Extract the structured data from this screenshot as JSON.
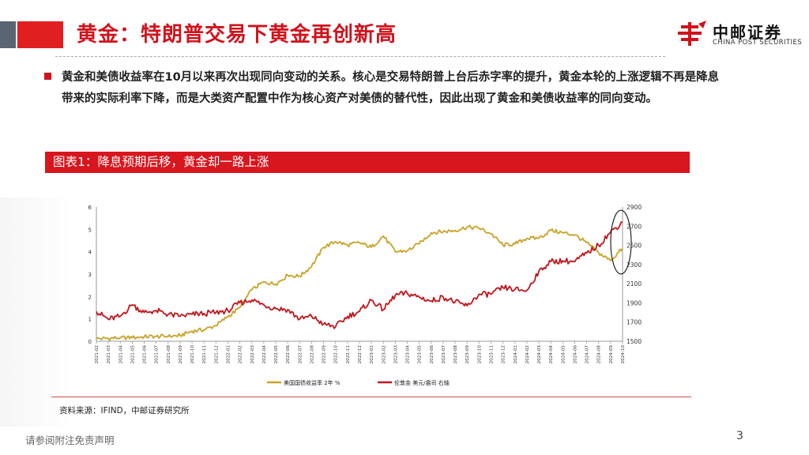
{
  "header": {
    "title": "黄金：特朗普交易下黄金再创新高",
    "logo_name": "中邮证券",
    "logo_en": "CHINA POST SECURITIES"
  },
  "body": {
    "paragraph": "黄金和美债收益率在10月以来再次出现同向变动的关系。核心是交易特朗普上台后赤字率的提升，黄金本轮的上涨逻辑不再是降息带来的实际利率下降，而是大类资产配置中作为核心资产对美债的替代性，因此出现了黄金和美债收益率的同向变动。"
  },
  "figure": {
    "title": "图表1：降息预期后移，黄金却一路上涨"
  },
  "chart_data": {
    "type": "line",
    "x_ticks": [
      "2021-02",
      "2021-03",
      "2021-04",
      "2021-05",
      "2021-06",
      "2021-07",
      "2021-08",
      "2021-09",
      "2021-10",
      "2021-11",
      "2021-12",
      "2022-01",
      "2022-02",
      "2022-03",
      "2022-04",
      "2022-05",
      "2022-06",
      "2022-07",
      "2022-08",
      "2022-09",
      "2022-10",
      "2022-11",
      "2022-12",
      "2023-01",
      "2023-02",
      "2023-03",
      "2023-04",
      "2023-05",
      "2023-06",
      "2023-07",
      "2023-08",
      "2023-09",
      "2023-10",
      "2023-11",
      "2023-12",
      "2024-01",
      "2024-02",
      "2024-03",
      "2024-04",
      "2024-05",
      "2024-06",
      "2024-07",
      "2024-08",
      "2024-09",
      "2024-10"
    ],
    "y_left": {
      "ticks": [
        0,
        1,
        2,
        3,
        4,
        5,
        6
      ],
      "range": [
        0,
        6
      ]
    },
    "y_right": {
      "ticks": [
        1500,
        1700,
        1900,
        2100,
        2300,
        2500,
        2700,
        2900
      ],
      "range": [
        1500,
        2900
      ]
    },
    "series": [
      {
        "name": "美国国债收益率 2年 %",
        "axis": "left",
        "color": "#c9a227",
        "values": [
          0.11,
          0.13,
          0.16,
          0.16,
          0.2,
          0.22,
          0.21,
          0.26,
          0.45,
          0.52,
          0.7,
          1.1,
          1.5,
          2.3,
          2.65,
          2.55,
          2.95,
          2.9,
          3.35,
          4.2,
          4.45,
          4.3,
          4.4,
          4.2,
          4.7,
          4.0,
          4.05,
          4.35,
          4.85,
          4.9,
          4.95,
          5.1,
          5.05,
          4.8,
          4.3,
          4.35,
          4.6,
          4.6,
          4.95,
          4.85,
          4.75,
          4.4,
          3.95,
          3.6,
          4.15
        ]
      },
      {
        "name": "伦敦金 美元/盎司 右轴",
        "axis": "right",
        "color": "#c0161d",
        "values": [
          1810,
          1730,
          1760,
          1880,
          1800,
          1820,
          1780,
          1760,
          1780,
          1790,
          1800,
          1820,
          1900,
          1930,
          1880,
          1840,
          1830,
          1730,
          1760,
          1680,
          1650,
          1760,
          1810,
          1930,
          1830,
          1980,
          2000,
          1960,
          1920,
          1960,
          1910,
          1870,
          1990,
          1990,
          2060,
          2040,
          2030,
          2230,
          2330,
          2340,
          2330,
          2420,
          2500,
          2640,
          2740
        ]
      }
    ],
    "annotation": "ellipse around latest values (2024-09 to 2024-10)",
    "legend_position": "bottom"
  },
  "source": "资料来源：IFIND，中邮证券研究所",
  "footer": {
    "disclaimer": "请参阅附注免责声明",
    "page": "3"
  },
  "colors": {
    "brand_red": "#d0121b",
    "header_gray": "#5a6472",
    "gold_line": "#c9a227",
    "red_line": "#c0161d"
  }
}
